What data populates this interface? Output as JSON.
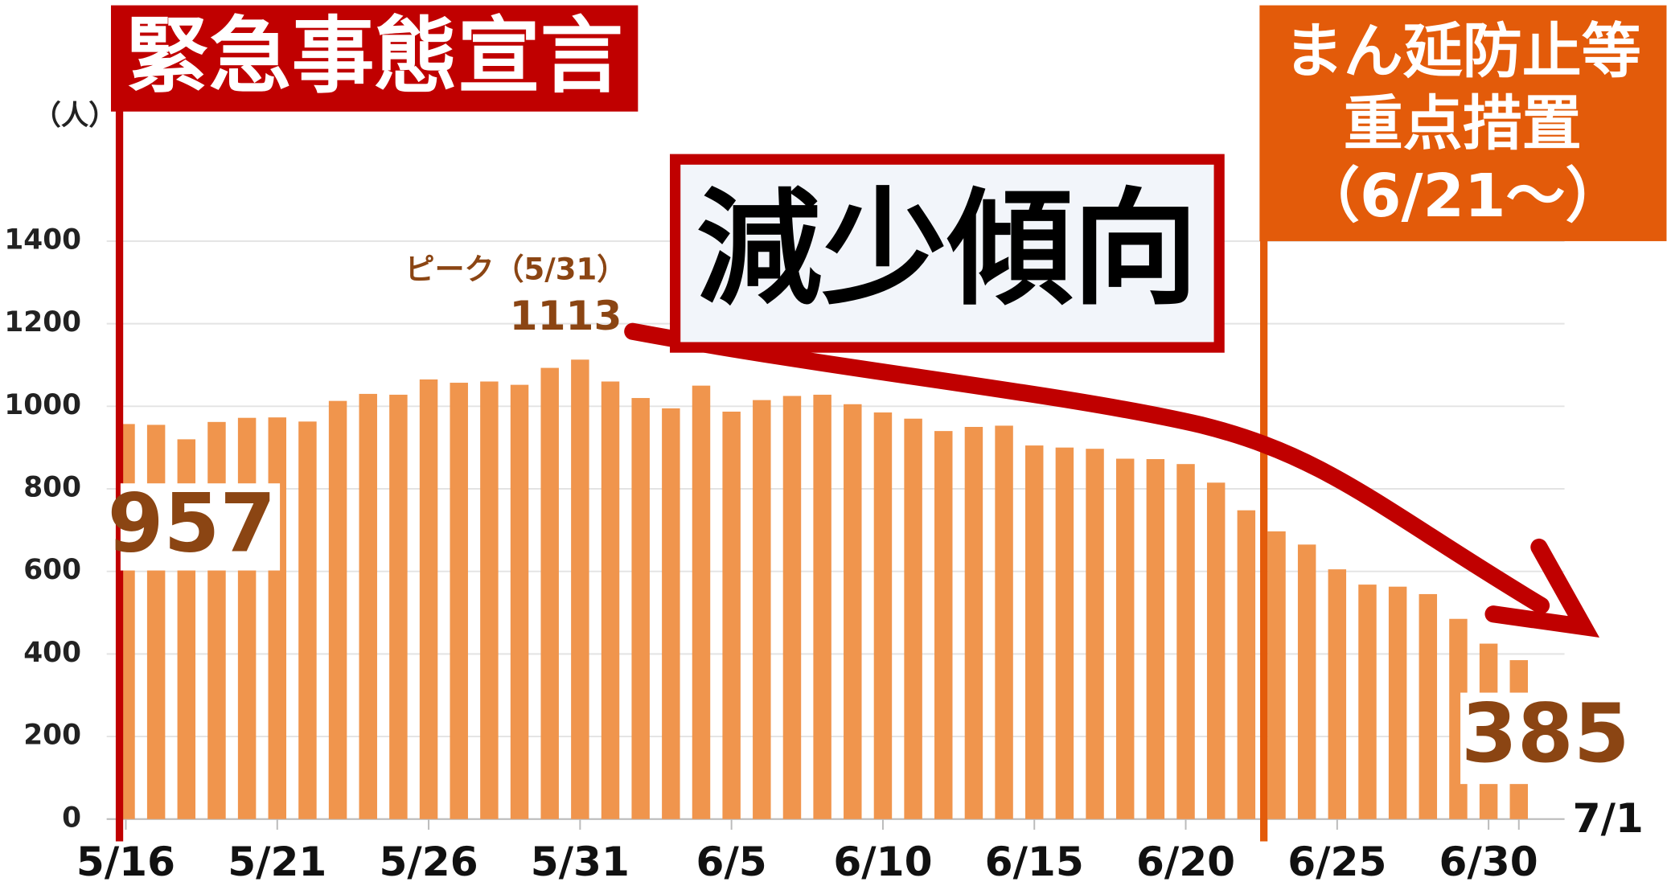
{
  "chart_data": {
    "type": "bar",
    "title": "緊急事態宣言",
    "annotation_box": [
      "まん延防止等",
      "重点措置",
      "（6/21～）"
    ],
    "trend_label": "減少傾向",
    "peak_label": "ピーク（5/31）",
    "y_unit": "（人）",
    "categories": [
      "5/16",
      null,
      null,
      null,
      null,
      "5/21",
      null,
      null,
      null,
      null,
      "5/26",
      null,
      null,
      null,
      null,
      "5/31",
      null,
      null,
      null,
      null,
      "6/5",
      null,
      null,
      null,
      null,
      "6/10",
      null,
      null,
      null,
      null,
      "6/15",
      null,
      null,
      null,
      null,
      "6/20",
      null,
      null,
      null,
      null,
      "6/25",
      null,
      null,
      null,
      null,
      "6/30",
      "7/1"
    ],
    "values": [
      957,
      955,
      920,
      962,
      972,
      973,
      963,
      1013,
      1030,
      1028,
      1065,
      1057,
      1060,
      1052,
      1093,
      1113,
      1060,
      1020,
      995,
      1050,
      987,
      1015,
      1025,
      1028,
      1005,
      985,
      970,
      940,
      950,
      953,
      905,
      900,
      897,
      873,
      872,
      860,
      815,
      748,
      697,
      665,
      605,
      568,
      563,
      545,
      485,
      425,
      385
    ],
    "color": "#f0954d",
    "ylim": [
      0,
      1400
    ],
    "yticks": [
      0,
      200,
      400,
      600,
      800,
      1000,
      1200,
      1400
    ],
    "grid": true
  }
}
